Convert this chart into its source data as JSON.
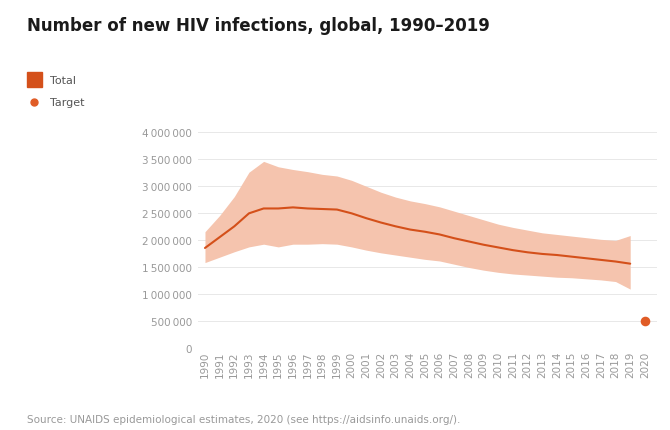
{
  "title": "Number of new HIV infections, global, 1990–2019",
  "source": "Source: UNAIDS epidemiological estimates, 2020 (see https://aidsinfo.unaids.org/).",
  "years": [
    1990,
    1991,
    1992,
    1993,
    1994,
    1995,
    1996,
    1997,
    1998,
    1999,
    2000,
    2001,
    2002,
    2003,
    2004,
    2005,
    2006,
    2007,
    2008,
    2009,
    2010,
    2011,
    2012,
    2013,
    2014,
    2015,
    2016,
    2017,
    2018,
    2019
  ],
  "central": [
    1850000,
    2050000,
    2250000,
    2490000,
    2580000,
    2580000,
    2600000,
    2580000,
    2570000,
    2560000,
    2490000,
    2400000,
    2320000,
    2250000,
    2190000,
    2150000,
    2100000,
    2030000,
    1970000,
    1910000,
    1860000,
    1810000,
    1770000,
    1740000,
    1720000,
    1690000,
    1660000,
    1630000,
    1600000,
    1560000
  ],
  "upper": [
    2150000,
    2450000,
    2800000,
    3250000,
    3450000,
    3350000,
    3300000,
    3260000,
    3210000,
    3180000,
    3100000,
    2990000,
    2880000,
    2790000,
    2720000,
    2670000,
    2610000,
    2530000,
    2450000,
    2370000,
    2290000,
    2230000,
    2180000,
    2130000,
    2100000,
    2070000,
    2040000,
    2010000,
    1990000,
    2080000
  ],
  "lower": [
    1580000,
    1680000,
    1780000,
    1870000,
    1920000,
    1870000,
    1920000,
    1920000,
    1930000,
    1920000,
    1870000,
    1810000,
    1760000,
    1720000,
    1680000,
    1640000,
    1610000,
    1550000,
    1490000,
    1440000,
    1400000,
    1370000,
    1350000,
    1330000,
    1310000,
    1300000,
    1280000,
    1260000,
    1230000,
    1090000
  ],
  "target_year": 2020,
  "target_value": 500000,
  "line_color": "#d4501a",
  "band_color": "#f5c4ae",
  "target_color": "#e05c26",
  "legend_total_color": "#d4501a",
  "legend_target_color": "#e05c26",
  "background_color": "#ffffff",
  "ylim": [
    0,
    4300000
  ],
  "yticks": [
    0,
    500000,
    1000000,
    1500000,
    2000000,
    2500000,
    3000000,
    3500000,
    4000000
  ],
  "title_fontsize": 12,
  "tick_fontsize": 7.5,
  "source_fontsize": 7.5
}
